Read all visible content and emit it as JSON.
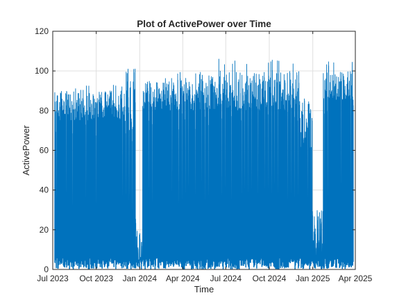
{
  "chart_data": {
    "type": "line",
    "title": "Plot of ActivePower over Time",
    "xlabel": "Time",
    "ylabel": "ActivePower",
    "x_range": [
      "2023-07-01",
      "2025-04-01"
    ],
    "x_ticks": [
      {
        "date": "2023-07-01",
        "label": "Jul 2023"
      },
      {
        "date": "2023-10-01",
        "label": "Oct 2023"
      },
      {
        "date": "2024-01-01",
        "label": "Jan 2024"
      },
      {
        "date": "2024-04-01",
        "label": "Apr 2024"
      },
      {
        "date": "2024-07-01",
        "label": "Jul 2024"
      },
      {
        "date": "2024-10-01",
        "label": "Oct 2024"
      },
      {
        "date": "2025-01-01",
        "label": "Jan 2025"
      },
      {
        "date": "2025-04-01",
        "label": "Apr 2025"
      }
    ],
    "ylim": [
      0,
      120
    ],
    "y_ticks": [
      0,
      20,
      40,
      60,
      80,
      100,
      120
    ],
    "grid": true,
    "series": [
      {
        "color": "#0072BD",
        "segments": [
          {
            "start": "2023-07-05",
            "end": "2023-12-01",
            "typical_daily_peak": [
              75,
              90
            ],
            "min": 0,
            "max": 93
          },
          {
            "start": "2023-12-01",
            "end": "2023-12-24",
            "typical_daily_peak": [
              70,
              101
            ],
            "min": 0,
            "max": 101
          },
          {
            "start": "2023-12-24",
            "end": "2024-01-06",
            "typical_daily_peak": [
              3,
              20
            ],
            "min": 0,
            "max": 20
          },
          {
            "start": "2024-01-06",
            "end": "2024-03-20",
            "typical_daily_peak": [
              80,
              95
            ],
            "min": 0,
            "max": 97
          },
          {
            "start": "2024-03-20",
            "end": "2024-12-05",
            "typical_daily_peak": [
              80,
              100
            ],
            "min": 0,
            "max": 106
          },
          {
            "start": "2024-12-05",
            "end": "2024-12-31",
            "typical_daily_peak": [
              60,
              85
            ],
            "min": 0,
            "max": 86
          },
          {
            "start": "2024-12-31",
            "end": "2025-01-23",
            "typical_daily_peak": [
              5,
              30
            ],
            "min": 0,
            "max": 30
          },
          {
            "start": "2025-01-23",
            "end": "2025-03-28",
            "typical_daily_peak": [
              85,
              100
            ],
            "min": 0,
            "max": 105
          }
        ]
      }
    ]
  }
}
